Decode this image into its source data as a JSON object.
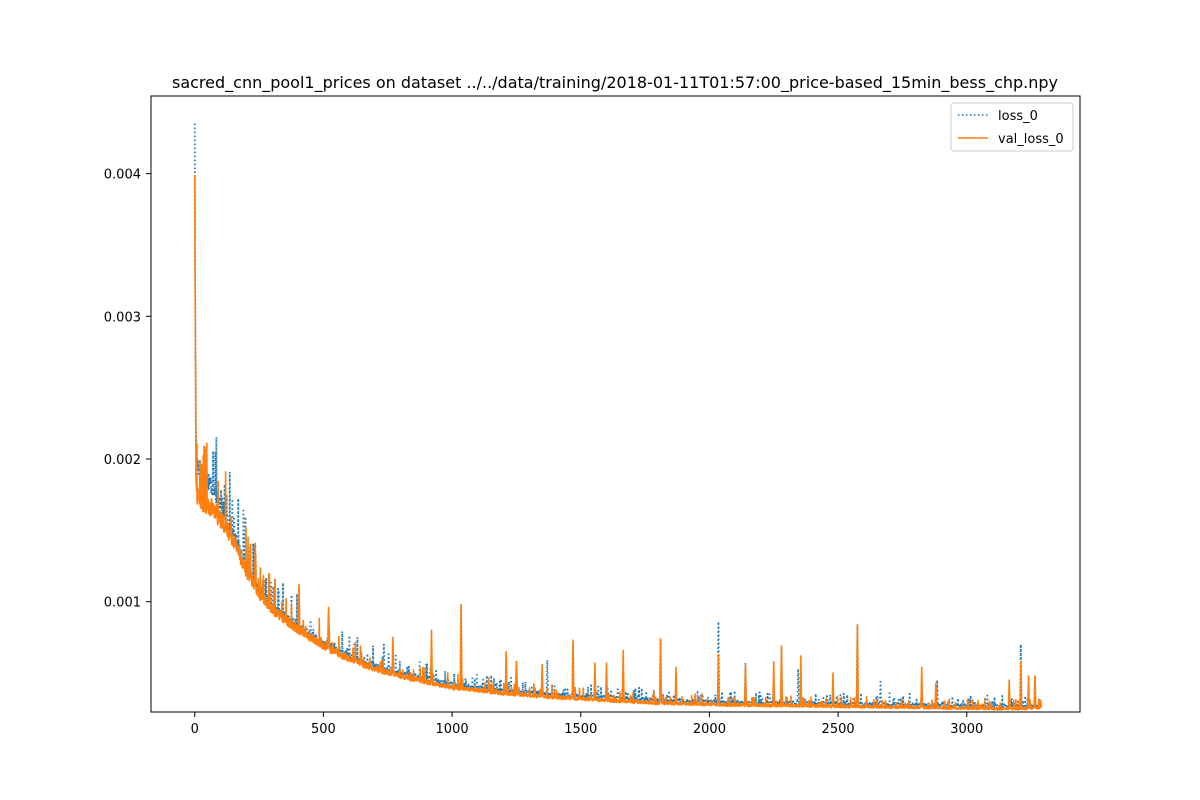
{
  "chart_data": {
    "type": "line",
    "title": "sacred_cnn_pool1_prices on dataset ../../data/training/2018-01-11T01:57:00_price-based_15min_bess_chp.npy",
    "xlabel": "",
    "ylabel": "",
    "xlim": [
      -170,
      3440
    ],
    "ylim": [
      0.000227,
      0.004544
    ],
    "x_ticks": [
      0,
      500,
      1000,
      1500,
      2000,
      2500,
      3000
    ],
    "x_tick_labels": [
      "0",
      "500",
      "1000",
      "1500",
      "2000",
      "2500",
      "3000"
    ],
    "y_ticks": [
      0.001,
      0.002,
      0.003,
      0.004
    ],
    "y_tick_labels": [
      "0.001",
      "0.002",
      "0.003",
      "0.004"
    ],
    "grid": false,
    "legend_position": "top-right",
    "series": [
      {
        "name": "loss_0",
        "color": "#1f77b4",
        "style": "dotted",
        "baseline": [
          [
            0,
            0.00435
          ],
          [
            2,
            0.0032
          ],
          [
            5,
            0.0022
          ],
          [
            10,
            0.00196
          ],
          [
            30,
            0.00191
          ],
          [
            60,
            0.00183
          ],
          [
            100,
            0.0017
          ],
          [
            150,
            0.00148
          ],
          [
            200,
            0.00125
          ],
          [
            250,
            0.00108
          ],
          [
            300,
            0.00097
          ],
          [
            400,
            0.00083
          ],
          [
            500,
            0.00071
          ],
          [
            600,
            0.00062
          ],
          [
            700,
            0.00055
          ],
          [
            800,
            0.0005
          ],
          [
            900,
            0.00046
          ],
          [
            1000,
            0.00042
          ],
          [
            1200,
            0.00038
          ],
          [
            1400,
            0.00035
          ],
          [
            1600,
            0.00033
          ],
          [
            1800,
            0.00031
          ],
          [
            2000,
            0.0003
          ],
          [
            2400,
            0.00029
          ],
          [
            2800,
            0.00028
          ],
          [
            3200,
            0.00027
          ],
          [
            3290,
            0.00027
          ]
        ],
        "spikes": [
          [
            110,
            0.00156
          ],
          [
            140,
            0.00155
          ],
          [
            235,
            0.0014
          ],
          [
            405,
            0.00109
          ],
          [
            520,
            0.00093
          ],
          [
            620,
            0.0007
          ],
          [
            735,
            0.0007
          ],
          [
            1035,
            0.00096
          ],
          [
            1250,
            0.00059
          ],
          [
            1370,
            0.00059
          ],
          [
            1470,
            0.00071
          ],
          [
            1810,
            0.00073
          ],
          [
            2035,
            0.00086
          ],
          [
            2140,
            0.00057
          ],
          [
            2280,
            0.00067
          ],
          [
            2345,
            0.00053
          ],
          [
            2575,
            0.00083
          ],
          [
            2665,
            0.00044
          ],
          [
            2885,
            0.00045
          ],
          [
            3210,
            0.0007
          ],
          [
            3265,
            0.00047
          ]
        ]
      },
      {
        "name": "val_loss_0",
        "color": "#ff7f0e",
        "style": "solid",
        "baseline": [
          [
            0,
            0.00399
          ],
          [
            2,
            0.003
          ],
          [
            5,
            0.00185
          ],
          [
            10,
            0.00175
          ],
          [
            30,
            0.0017
          ],
          [
            60,
            0.00166
          ],
          [
            100,
            0.00158
          ],
          [
            150,
            0.00144
          ],
          [
            200,
            0.00122
          ],
          [
            250,
            0.00106
          ],
          [
            300,
            0.00095
          ],
          [
            400,
            0.00081
          ],
          [
            500,
            0.00069
          ],
          [
            600,
            0.0006
          ],
          [
            700,
            0.00053
          ],
          [
            800,
            0.00048
          ],
          [
            900,
            0.00044
          ],
          [
            1000,
            0.0004
          ],
          [
            1200,
            0.00036
          ],
          [
            1400,
            0.00033
          ],
          [
            1600,
            0.00031
          ],
          [
            1800,
            0.00029
          ],
          [
            2000,
            0.00028
          ],
          [
            2400,
            0.00027
          ],
          [
            2800,
            0.00026
          ],
          [
            3200,
            0.00025
          ],
          [
            3290,
            0.00026
          ]
        ],
        "spikes": [
          [
            85,
            0.00168
          ],
          [
            140,
            0.0015
          ],
          [
            235,
            0.00141
          ],
          [
            290,
            0.00107
          ],
          [
            405,
            0.00112
          ],
          [
            520,
            0.00096
          ],
          [
            770,
            0.00075
          ],
          [
            920,
            0.0008
          ],
          [
            1035,
            0.00098
          ],
          [
            1210,
            0.00065
          ],
          [
            1250,
            0.00058
          ],
          [
            1350,
            0.00056
          ],
          [
            1470,
            0.00073
          ],
          [
            1555,
            0.00057
          ],
          [
            1600,
            0.00057
          ],
          [
            1665,
            0.00066
          ],
          [
            1810,
            0.00074
          ],
          [
            1870,
            0.00054
          ],
          [
            2035,
            0.00063
          ],
          [
            2140,
            0.00055
          ],
          [
            2250,
            0.00058
          ],
          [
            2280,
            0.00069
          ],
          [
            2355,
            0.00062
          ],
          [
            2480,
            0.0005
          ],
          [
            2575,
            0.00084
          ],
          [
            2825,
            0.00054
          ],
          [
            2880,
            0.00043
          ],
          [
            3165,
            0.00045
          ],
          [
            3210,
            0.00058
          ],
          [
            3240,
            0.00048
          ],
          [
            3265,
            0.00048
          ]
        ]
      }
    ]
  }
}
